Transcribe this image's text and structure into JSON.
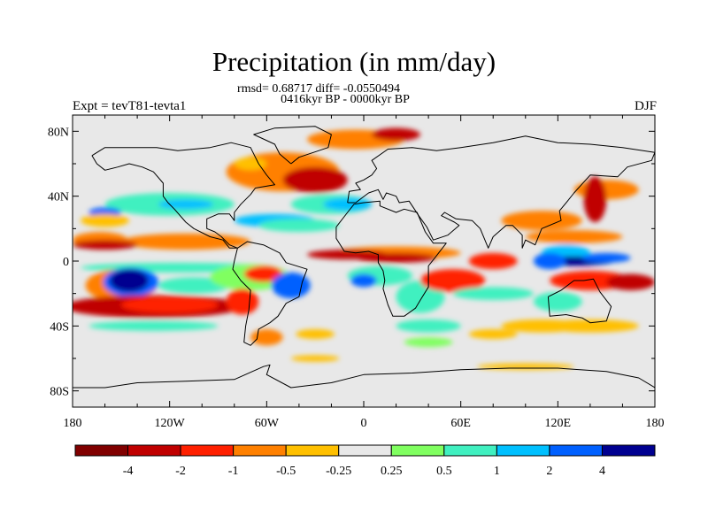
{
  "chart_data": {
    "type": "heatmap",
    "title": "Precipitation (in mm/day)",
    "subtitle_line1": "rmsd= 0.68717 diff= -0.0550494",
    "subtitle_line2": "0416kyr BP - 0000kyr BP",
    "left_label": "Expt = tevT81-tevta1",
    "right_label": "DJF",
    "xlim": [
      -180,
      180
    ],
    "ylim": [
      -90,
      90
    ],
    "x_ticks": [
      {
        "value": -180,
        "label": "180"
      },
      {
        "value": -120,
        "label": "120W"
      },
      {
        "value": -60,
        "label": "60W"
      },
      {
        "value": 0,
        "label": "0"
      },
      {
        "value": 60,
        "label": "60E"
      },
      {
        "value": 120,
        "label": "120E"
      },
      {
        "value": 180,
        "label": "180"
      }
    ],
    "y_ticks": [
      {
        "value": 80,
        "label": "80N"
      },
      {
        "value": 40,
        "label": "40N"
      },
      {
        "value": 0,
        "label": "0"
      },
      {
        "value": -40,
        "label": "40S"
      },
      {
        "value": -80,
        "label": "80S"
      }
    ],
    "colorbar": {
      "colors": [
        "#800000",
        "#c00000",
        "#ff2000",
        "#ff8000",
        "#ffc000",
        "#e8e8e8",
        "#80ff60",
        "#40f0c0",
        "#00c0ff",
        "#0060ff",
        "#000090"
      ],
      "labels": [
        "-4",
        "-2",
        "-1",
        "-0.5",
        "-0.25",
        "0.25",
        "0.5",
        "1",
        "2",
        "4"
      ]
    },
    "regions": [
      {
        "lon": 150,
        "lat": 44,
        "rx": 20,
        "ry": 6,
        "level": 3
      },
      {
        "lon": 143,
        "lat": 38,
        "rx": 7,
        "ry": 14,
        "level": 1
      },
      {
        "lon": -163,
        "lat": 13,
        "rx": 17,
        "ry": 5,
        "level": 3
      },
      {
        "lon": -110,
        "lat": 12,
        "rx": 40,
        "ry": 5,
        "level": 3
      },
      {
        "lon": -160,
        "lat": 10,
        "rx": 20,
        "ry": 3,
        "level": 1
      },
      {
        "lon": -120,
        "lat": 35,
        "rx": 40,
        "ry": 7,
        "level": 7
      },
      {
        "lon": -110,
        "lat": 35,
        "rx": 17,
        "ry": 3,
        "level": 8
      },
      {
        "lon": -160,
        "lat": 30,
        "rx": 10,
        "ry": 3,
        "level": 9
      },
      {
        "lon": -115,
        "lat": -4,
        "rx": 60,
        "ry": 3,
        "level": 7
      },
      {
        "lon": -150,
        "lat": -15,
        "rx": 22,
        "ry": 10,
        "level": 3
      },
      {
        "lon": -144,
        "lat": -13,
        "rx": 17,
        "ry": 9,
        "level": 9
      },
      {
        "lon": -145,
        "lat": -12,
        "rx": 12,
        "ry": 7,
        "level": 10
      },
      {
        "lon": -105,
        "lat": -15,
        "rx": 22,
        "ry": 5,
        "level": 7
      },
      {
        "lon": -130,
        "lat": -28,
        "rx": 55,
        "ry": 7,
        "level": 1
      },
      {
        "lon": -120,
        "lat": -27,
        "rx": 30,
        "ry": 5,
        "level": 2
      },
      {
        "lon": -70,
        "lat": -10,
        "rx": 25,
        "ry": 8,
        "level": 6
      },
      {
        "lon": -62,
        "lat": -8,
        "rx": 12,
        "ry": 5,
        "level": 2
      },
      {
        "lon": -45,
        "lat": -15,
        "rx": 12,
        "ry": 8,
        "level": 9
      },
      {
        "lon": -75,
        "lat": -25,
        "rx": 10,
        "ry": 8,
        "level": 2
      },
      {
        "lon": -60,
        "lat": -47,
        "rx": 10,
        "ry": 5,
        "level": 3
      },
      {
        "lon": -55,
        "lat": 25,
        "rx": 25,
        "ry": 4,
        "level": 8
      },
      {
        "lon": -40,
        "lat": 22,
        "rx": 25,
        "ry": 4,
        "level": 7
      },
      {
        "lon": -50,
        "lat": 55,
        "rx": 35,
        "ry": 12,
        "level": 3
      },
      {
        "lon": -30,
        "lat": 50,
        "rx": 20,
        "ry": 8,
        "level": 1
      },
      {
        "lon": -5,
        "lat": 75,
        "rx": 30,
        "ry": 6,
        "level": 3
      },
      {
        "lon": 20,
        "lat": 78,
        "rx": 15,
        "ry": 4,
        "level": 1
      },
      {
        "lon": -20,
        "lat": 35,
        "rx": 25,
        "ry": 6,
        "level": 7
      },
      {
        "lon": -10,
        "lat": 35,
        "rx": 15,
        "ry": 4,
        "level": 8
      },
      {
        "lon": 20,
        "lat": 5,
        "rx": 40,
        "ry": 4,
        "level": 3
      },
      {
        "lon": -10,
        "lat": 4,
        "rx": 25,
        "ry": 3,
        "level": 1
      },
      {
        "lon": 20,
        "lat": 2,
        "rx": 25,
        "ry": 3,
        "level": 1
      },
      {
        "lon": 10,
        "lat": -9,
        "rx": 20,
        "ry": 6,
        "level": 7
      },
      {
        "lon": 0,
        "lat": -12,
        "rx": 8,
        "ry": 4,
        "level": 9
      },
      {
        "lon": 35,
        "lat": -22,
        "rx": 15,
        "ry": 10,
        "level": 7
      },
      {
        "lon": 55,
        "lat": -12,
        "rx": 20,
        "ry": 7,
        "level": 2
      },
      {
        "lon": 80,
        "lat": 0,
        "rx": 15,
        "ry": 5,
        "level": 2
      },
      {
        "lon": 80,
        "lat": -20,
        "rx": 25,
        "ry": 4,
        "level": 7
      },
      {
        "lon": 40,
        "lat": -40,
        "rx": 20,
        "ry": 4,
        "level": 7
      },
      {
        "lon": 110,
        "lat": 25,
        "rx": 25,
        "ry": 6,
        "level": 3
      },
      {
        "lon": 130,
        "lat": 15,
        "rx": 30,
        "ry": 4,
        "level": 3
      },
      {
        "lon": 125,
        "lat": 5,
        "rx": 15,
        "ry": 5,
        "level": 8
      },
      {
        "lon": 130,
        "lat": 0,
        "rx": 25,
        "ry": 3,
        "level": 10
      },
      {
        "lon": 150,
        "lat": 2,
        "rx": 15,
        "ry": 3,
        "level": 9
      },
      {
        "lon": 115,
        "lat": 0,
        "rx": 10,
        "ry": 5,
        "level": 9
      },
      {
        "lon": 140,
        "lat": -12,
        "rx": 25,
        "ry": 6,
        "level": 2
      },
      {
        "lon": 165,
        "lat": -13,
        "rx": 15,
        "ry": 5,
        "level": 1
      },
      {
        "lon": 120,
        "lat": -25,
        "rx": 15,
        "ry": 6,
        "level": 7
      },
      {
        "lon": 110,
        "lat": -40,
        "rx": 25,
        "ry": 4,
        "level": 4
      },
      {
        "lon": 140,
        "lat": -40,
        "rx": 30,
        "ry": 4,
        "level": 4
      },
      {
        "lon": -130,
        "lat": -40,
        "rx": 40,
        "ry": 3,
        "level": 7
      },
      {
        "lon": -160,
        "lat": 25,
        "rx": 15,
        "ry": 4,
        "level": 4
      },
      {
        "lon": -70,
        "lat": 60,
        "rx": 10,
        "ry": 4,
        "level": 4
      },
      {
        "lon": -30,
        "lat": -45,
        "rx": 12,
        "ry": 3,
        "level": 4
      },
      {
        "lon": 40,
        "lat": -50,
        "rx": 15,
        "ry": 3,
        "level": 6
      },
      {
        "lon": 80,
        "lat": -45,
        "rx": 15,
        "ry": 3,
        "level": 4
      },
      {
        "lon": -30,
        "lat": -60,
        "rx": 15,
        "ry": 2,
        "level": 4
      },
      {
        "lon": 100,
        "lat": -65,
        "rx": 30,
        "ry": 2,
        "level": 4
      }
    ],
    "coastlines": {
      "north_america": [
        [
          -168,
          65
        ],
        [
          -160,
          70
        ],
        [
          -140,
          70
        ],
        [
          -128,
          70
        ],
        [
          -115,
          68
        ],
        [
          -95,
          70
        ],
        [
          -82,
          73
        ],
        [
          -70,
          70
        ],
        [
          -65,
          60
        ],
        [
          -60,
          53
        ],
        [
          -55,
          47
        ],
        [
          -67,
          45
        ],
        [
          -70,
          41
        ],
        [
          -76,
          35
        ],
        [
          -80,
          30
        ],
        [
          -80,
          25
        ],
        [
          -83,
          29
        ],
        [
          -90,
          29
        ],
        [
          -97,
          26
        ],
        [
          -97,
          20
        ],
        [
          -92,
          18
        ],
        [
          -88,
          15
        ],
        [
          -83,
          10
        ],
        [
          -78,
          8
        ],
        [
          -83,
          8
        ],
        [
          -87,
          13
        ],
        [
          -95,
          15
        ],
        [
          -105,
          20
        ],
        [
          -110,
          24
        ],
        [
          -117,
          32
        ],
        [
          -121,
          36
        ],
        [
          -124,
          40
        ],
        [
          -124,
          48
        ],
        [
          -130,
          55
        ],
        [
          -137,
          58
        ],
        [
          -145,
          60
        ],
        [
          -152,
          58
        ],
        [
          -160,
          56
        ],
        [
          -165,
          60
        ],
        [
          -168,
          65
        ]
      ],
      "greenland": [
        [
          -45,
          60
        ],
        [
          -40,
          64
        ],
        [
          -22,
          70
        ],
        [
          -20,
          78
        ],
        [
          -30,
          83
        ],
        [
          -55,
          82
        ],
        [
          -68,
          78
        ],
        [
          -55,
          72
        ],
        [
          -52,
          66
        ],
        [
          -45,
          60
        ]
      ],
      "south_america": [
        [
          -78,
          8
        ],
        [
          -72,
          12
        ],
        [
          -62,
          10
        ],
        [
          -52,
          5
        ],
        [
          -48,
          -1
        ],
        [
          -35,
          -5
        ],
        [
          -38,
          -13
        ],
        [
          -40,
          -22
        ],
        [
          -48,
          -26
        ],
        [
          -53,
          -34
        ],
        [
          -58,
          -38
        ],
        [
          -65,
          -42
        ],
        [
          -66,
          -48
        ],
        [
          -70,
          -52
        ],
        [
          -74,
          -50
        ],
        [
          -73,
          -40
        ],
        [
          -71,
          -30
        ],
        [
          -70,
          -18
        ],
        [
          -76,
          -12
        ],
        [
          -81,
          -5
        ],
        [
          -80,
          0
        ],
        [
          -78,
          8
        ]
      ],
      "eurasia": [
        [
          -10,
          36
        ],
        [
          -9,
          43
        ],
        [
          -2,
          44
        ],
        [
          -5,
          48
        ],
        [
          0,
          50
        ],
        [
          5,
          53
        ],
        [
          8,
          57
        ],
        [
          5,
          62
        ],
        [
          15,
          69
        ],
        [
          30,
          70
        ],
        [
          45,
          68
        ],
        [
          60,
          70
        ],
        [
          80,
          73
        ],
        [
          100,
          77
        ],
        [
          120,
          73
        ],
        [
          140,
          72
        ],
        [
          160,
          70
        ],
        [
          180,
          67
        ],
        [
          178,
          62
        ],
        [
          163,
          58
        ],
        [
          157,
          52
        ],
        [
          140,
          53
        ],
        [
          130,
          42
        ],
        [
          126,
          37
        ],
        [
          121,
          31
        ],
        [
          122,
          25
        ],
        [
          110,
          20
        ],
        [
          106,
          10
        ],
        [
          100,
          13
        ],
        [
          98,
          8
        ],
        [
          98,
          16
        ],
        [
          92,
          22
        ],
        [
          88,
          22
        ],
        [
          80,
          15
        ],
        [
          77,
          8
        ],
        [
          72,
          20
        ],
        [
          67,
          25
        ],
        [
          57,
          26
        ],
        [
          50,
          30
        ],
        [
          48,
          28
        ],
        [
          56,
          24
        ],
        [
          59,
          22
        ],
        [
          52,
          16
        ],
        [
          43,
          13
        ],
        [
          39,
          21
        ],
        [
          34,
          28
        ],
        [
          32,
          31
        ],
        [
          28,
          37
        ],
        [
          22,
          36
        ],
        [
          20,
          40
        ],
        [
          14,
          42
        ],
        [
          12,
          38
        ],
        [
          9,
          44
        ],
        [
          3,
          42
        ],
        [
          -5,
          36
        ],
        [
          -10,
          36
        ]
      ],
      "africa": [
        [
          -17,
          21
        ],
        [
          -17,
          14
        ],
        [
          -12,
          6
        ],
        [
          -5,
          5
        ],
        [
          3,
          6
        ],
        [
          9,
          4
        ],
        [
          9,
          -1
        ],
        [
          12,
          -6
        ],
        [
          13,
          -12
        ],
        [
          12,
          -17
        ],
        [
          15,
          -27
        ],
        [
          18,
          -34
        ],
        [
          25,
          -34
        ],
        [
          32,
          -29
        ],
        [
          35,
          -24
        ],
        [
          40,
          -16
        ],
        [
          40,
          -10
        ],
        [
          40,
          -3
        ],
        [
          44,
          2
        ],
        [
          51,
          11
        ],
        [
          43,
          11
        ],
        [
          38,
          18
        ],
        [
          33,
          30
        ],
        [
          25,
          32
        ],
        [
          20,
          30
        ],
        [
          10,
          34
        ],
        [
          10,
          37
        ],
        [
          0,
          36
        ],
        [
          -6,
          35
        ],
        [
          -10,
          30
        ],
        [
          -17,
          21
        ]
      ],
      "australia": [
        [
          114,
          -22
        ],
        [
          115,
          -34
        ],
        [
          125,
          -33
        ],
        [
          135,
          -35
        ],
        [
          140,
          -38
        ],
        [
          150,
          -37
        ],
        [
          153,
          -28
        ],
        [
          146,
          -19
        ],
        [
          142,
          -11
        ],
        [
          136,
          -12
        ],
        [
          130,
          -12
        ],
        [
          122,
          -18
        ],
        [
          114,
          -22
        ]
      ],
      "antarctica": [
        [
          -180,
          -78
        ],
        [
          -160,
          -78
        ],
        [
          -140,
          -75
        ],
        [
          -110,
          -74
        ],
        [
          -80,
          -73
        ],
        [
          -62,
          -65
        ],
        [
          -58,
          -64
        ],
        [
          -60,
          -70
        ],
        [
          -45,
          -78
        ],
        [
          -20,
          -75
        ],
        [
          0,
          -70
        ],
        [
          30,
          -69
        ],
        [
          60,
          -67
        ],
        [
          90,
          -66
        ],
        [
          120,
          -66
        ],
        [
          150,
          -68
        ],
        [
          170,
          -72
        ],
        [
          180,
          -78
        ]
      ]
    }
  }
}
